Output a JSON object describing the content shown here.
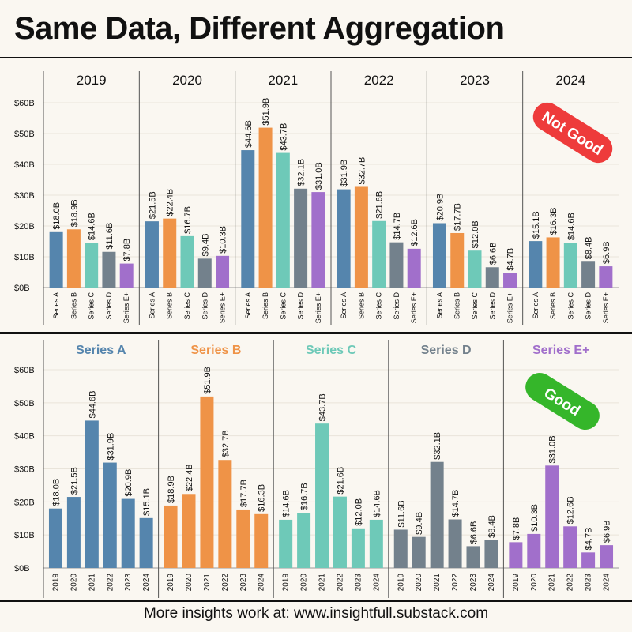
{
  "title": "Same Data, Different Aggregation",
  "footer": {
    "prefix": "More insights work at: ",
    "url": "www.insightfull.substack.com"
  },
  "colors": {
    "Series A": "#5585ad",
    "Series B": "#ef9347",
    "Series C": "#6ec9b8",
    "Series D": "#73818c",
    "Series E+": "#a16fcb"
  },
  "badges": [
    {
      "text": "Not Good",
      "color": "#ee3b3b"
    },
    {
      "text": "Good",
      "color": "#35b62a"
    }
  ],
  "chart_data": [
    {
      "type": "bar",
      "grouping": "by year",
      "groups": [
        "2019",
        "2020",
        "2021",
        "2022",
        "2023",
        "2024"
      ],
      "categories": [
        "Series A",
        "Series B",
        "Series C",
        "Series D",
        "Series E+"
      ],
      "ylim": [
        0,
        60
      ],
      "yticks": [
        "$0B",
        "$10B",
        "$20B",
        "$30B",
        "$40B",
        "$50B",
        "$60B"
      ],
      "values": [
        [
          18.0,
          18.9,
          14.6,
          11.6,
          7.8
        ],
        [
          21.5,
          22.4,
          16.7,
          9.4,
          10.3
        ],
        [
          44.6,
          51.9,
          43.7,
          32.1,
          31.0
        ],
        [
          31.9,
          32.7,
          21.6,
          14.7,
          12.6
        ],
        [
          20.9,
          17.7,
          12.0,
          6.6,
          4.7
        ],
        [
          15.1,
          16.3,
          14.6,
          8.4,
          6.9
        ]
      ],
      "labels": [
        [
          "$18.0B",
          "$18.9B",
          "$14.6B",
          "$11.6B",
          "$7.8B"
        ],
        [
          "$21.5B",
          "$22.4B",
          "$16.7B",
          "$9.4B",
          "$10.3B"
        ],
        [
          "$44.6B",
          "$51.9B",
          "$43.7B",
          "$32.1B",
          "$31.0B"
        ],
        [
          "$31.9B",
          "$32.7B",
          "$21.6B",
          "$14.7B",
          "$12.6B"
        ],
        [
          "$20.9B",
          "$17.7B",
          "$12.0B",
          "$6.6B",
          "$4.7B"
        ],
        [
          "$15.1B",
          "$16.3B",
          "$14.6B",
          "$8.4B",
          "$6.9B"
        ]
      ],
      "grid": true
    },
    {
      "type": "bar",
      "grouping": "by series",
      "groups": [
        "Series A",
        "Series B",
        "Series C",
        "Series D",
        "Series E+"
      ],
      "categories": [
        "2019",
        "2020",
        "2021",
        "2022",
        "2023",
        "2024"
      ],
      "ylim": [
        0,
        60
      ],
      "yticks": [
        "$0B",
        "$10B",
        "$20B",
        "$30B",
        "$40B",
        "$50B",
        "$60B"
      ],
      "values": [
        [
          18.0,
          21.5,
          44.6,
          31.9,
          20.9,
          15.1
        ],
        [
          18.9,
          22.4,
          51.9,
          32.7,
          17.7,
          16.3
        ],
        [
          14.6,
          16.7,
          43.7,
          21.6,
          12.0,
          14.6
        ],
        [
          11.6,
          9.4,
          32.1,
          14.7,
          6.6,
          8.4
        ],
        [
          7.8,
          10.3,
          31.0,
          12.6,
          4.7,
          6.9
        ]
      ],
      "labels": [
        [
          "$18.0B",
          "$21.5B",
          "$44.6B",
          "$31.9B",
          "$20.9B",
          "$15.1B"
        ],
        [
          "$18.9B",
          "$22.4B",
          "$51.9B",
          "$32.7B",
          "$17.7B",
          "$16.3B"
        ],
        [
          "$14.6B",
          "$16.7B",
          "$43.7B",
          "$21.6B",
          "$12.0B",
          "$14.6B"
        ],
        [
          "$11.6B",
          "$9.4B",
          "$32.1B",
          "$14.7B",
          "$6.6B",
          "$8.4B"
        ],
        [
          "$7.8B",
          "$10.3B",
          "$31.0B",
          "$12.6B",
          "$4.7B",
          "$6.9B"
        ]
      ],
      "grid": true
    }
  ]
}
